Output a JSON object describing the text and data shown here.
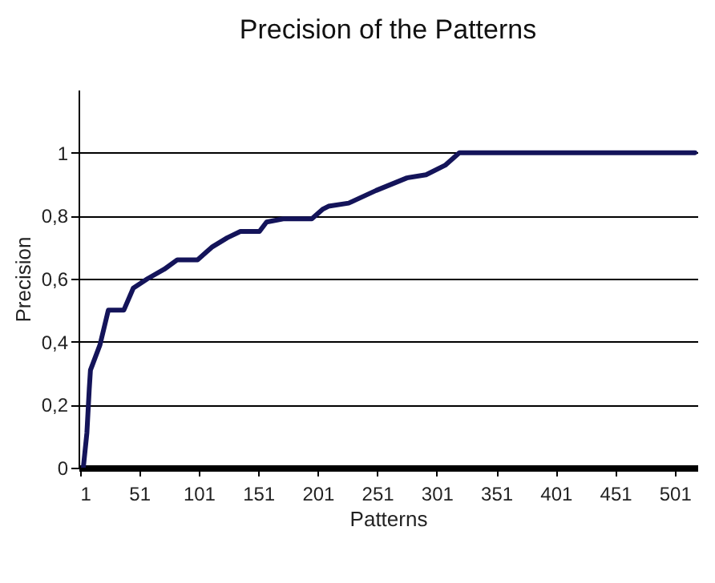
{
  "chart_data": {
    "type": "line",
    "title": "Precision of the Patterns",
    "xlabel": "Patterns",
    "ylabel": "Precision",
    "series": [
      {
        "color": "#14145a",
        "x": [
          4,
          7,
          9,
          10,
          18,
          25,
          38,
          46,
          58,
          72,
          83,
          100,
          112,
          125,
          136,
          152,
          158,
          172,
          196,
          205,
          210,
          227,
          250,
          276,
          292,
          308,
          320,
          518
        ],
        "values": [
          0,
          0.11,
          0.25,
          0.31,
          0.39,
          0.5,
          0.5,
          0.57,
          0.6,
          0.63,
          0.66,
          0.66,
          0.7,
          0.73,
          0.75,
          0.75,
          0.78,
          0.79,
          0.79,
          0.82,
          0.83,
          0.84,
          0.88,
          0.92,
          0.93,
          0.96,
          1,
          1
        ]
      }
    ],
    "xlim": [
      0,
      520
    ],
    "xticks": [
      1,
      51,
      101,
      151,
      201,
      251,
      301,
      351,
      401,
      451,
      501
    ],
    "ylim": [
      0,
      1.2
    ],
    "yticks": [
      {
        "value": 0,
        "label": "0"
      },
      {
        "value": 0.2,
        "label": "0,2"
      },
      {
        "value": 0.4,
        "label": "0,4"
      },
      {
        "value": 0.6,
        "label": "0,6"
      },
      {
        "value": 0.8,
        "label": "0,8"
      },
      {
        "value": 1,
        "label": "1"
      }
    ],
    "grid": "y",
    "marker": "none",
    "line_style": "solid"
  }
}
